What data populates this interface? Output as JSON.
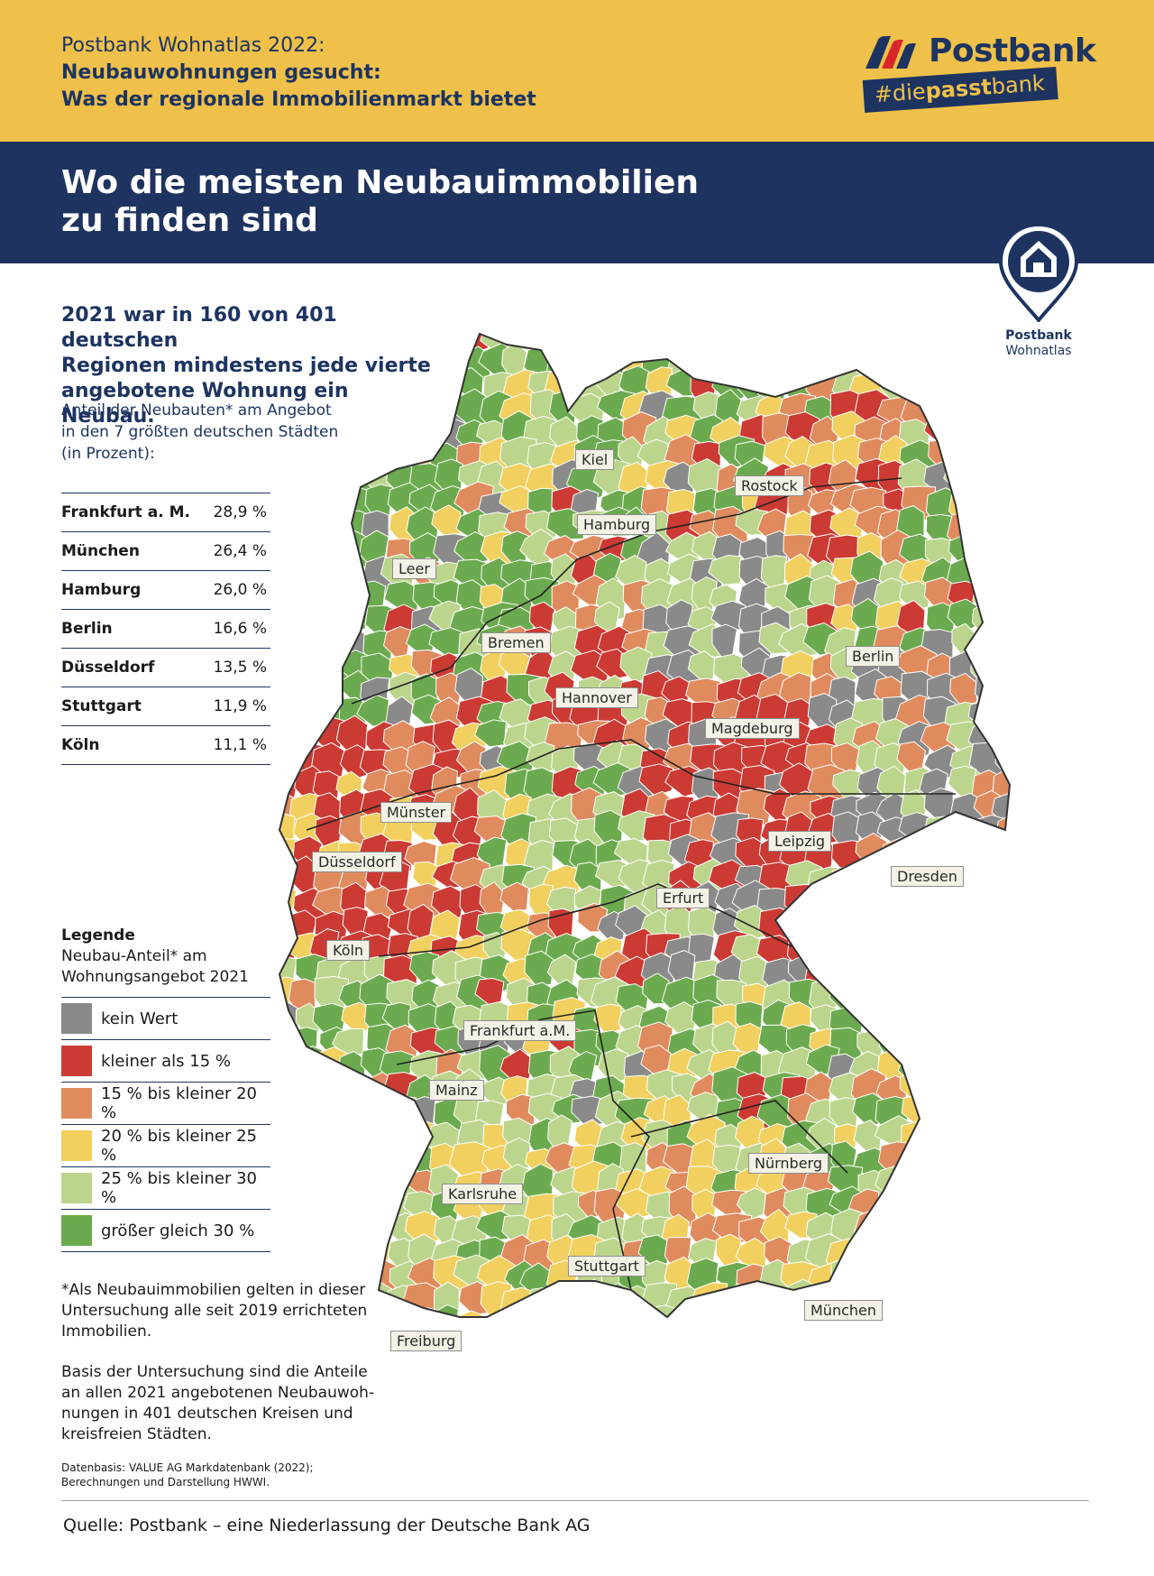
{
  "header": {
    "pretitle_line1": "Postbank Wohnatlas 2022:",
    "pretitle_line2": "Neubauwohnungen gesucht:",
    "pretitle_line3": "Was der regionale Immobilienmarkt bietet",
    "brand_name": "Postbank",
    "brand_tag_pre": "#die",
    "brand_tag_bold": "passt",
    "brand_tag_post": "bank"
  },
  "headline": {
    "line1": "Wo die meisten Neubauimmobilien",
    "line2": "zu finden sind"
  },
  "pin": {
    "label_bold": "Postbank",
    "label_regular": "Wohnatlas"
  },
  "intro": {
    "line1": "2021 war in 160 von 401 deutschen",
    "line2": "Regionen mindestens jede vierte",
    "line3": "angebotene Wohnung ein Neubau.",
    "sub_line1": "Anteil der Neubauten* am Angebot",
    "sub_line2": "in den 7 größten deutschen Städten",
    "sub_line3": "(in Prozent):"
  },
  "cities": [
    {
      "name": "Frankfurt a. M.",
      "value": "28,9 %"
    },
    {
      "name": "München",
      "value": "26,4 %"
    },
    {
      "name": "Hamburg",
      "value": "26,0 %"
    },
    {
      "name": "Berlin",
      "value": "16,6 %"
    },
    {
      "name": "Düsseldorf",
      "value": "13,5 %"
    },
    {
      "name": "Stuttgart",
      "value": "11,9 %"
    },
    {
      "name": "Köln",
      "value": "11,1 %"
    }
  ],
  "legend": {
    "title": "Legende",
    "sub_line1": "Neubau-Anteil* am",
    "sub_line2": "Wohnungsangebot 2021",
    "items": [
      {
        "label": "kein Wert",
        "color": "#8a8a8a"
      },
      {
        "label": "kleiner als 15 %",
        "color": "#cc3a34"
      },
      {
        "label": "15 % bis kleiner 20 %",
        "color": "#e08b5e"
      },
      {
        "label": "20 % bis kleiner 25 %",
        "color": "#f2d05f"
      },
      {
        "label": "25 % bis kleiner 30 %",
        "color": "#bcd58c"
      },
      {
        "label": "größer gleich 30 %",
        "color": "#6caa4f"
      }
    ]
  },
  "footnote": {
    "line1": "*Als Neubauimmobilien gelten in dieser",
    "line2": "Untersuchung alle seit 2019 errichteten",
    "line3": "Immobilien.",
    "basis_line1": "Basis der Untersuchung sind die Anteile",
    "basis_line2": "an allen 2021 angebotenen Neubauwoh-",
    "basis_line3": "nungen in 401 deutschen Kreisen und",
    "basis_line4": "kreisfreien Städten.",
    "datasrc_line1": "Datenbasis: VALUE AG Markdatenbank (2022);",
    "datasrc_line2": "Berechnungen und Darstellung HWWI."
  },
  "source": "Quelle: Postbank – eine Niederlassung der Deutsche Bank AG",
  "map_labels": [
    {
      "id": "kiel",
      "text": "Kiel"
    },
    {
      "id": "rostock",
      "text": "Rostock"
    },
    {
      "id": "hamburg",
      "text": "Hamburg"
    },
    {
      "id": "leer",
      "text": "Leer"
    },
    {
      "id": "bremen",
      "text": "Bremen"
    },
    {
      "id": "berlin",
      "text": "Berlin"
    },
    {
      "id": "hannover",
      "text": "Hannover"
    },
    {
      "id": "magdeburg",
      "text": "Magdeburg"
    },
    {
      "id": "muenster",
      "text": "Münster"
    },
    {
      "id": "leipzig",
      "text": "Leipzig"
    },
    {
      "id": "duesseldorf",
      "text": "Düsseldorf"
    },
    {
      "id": "dresden",
      "text": "Dresden"
    },
    {
      "id": "erfurt",
      "text": "Erfurt"
    },
    {
      "id": "koeln",
      "text": "Köln"
    },
    {
      "id": "frankfurt",
      "text": "Frankfurt a.M."
    },
    {
      "id": "mainz",
      "text": "Mainz"
    },
    {
      "id": "nuernberg",
      "text": "Nürnberg"
    },
    {
      "id": "karlsruhe",
      "text": "Karlsruhe"
    },
    {
      "id": "stuttgart",
      "text": "Stuttgart"
    },
    {
      "id": "muenchen",
      "text": "München"
    },
    {
      "id": "freiburg",
      "text": "Freiburg"
    }
  ]
}
